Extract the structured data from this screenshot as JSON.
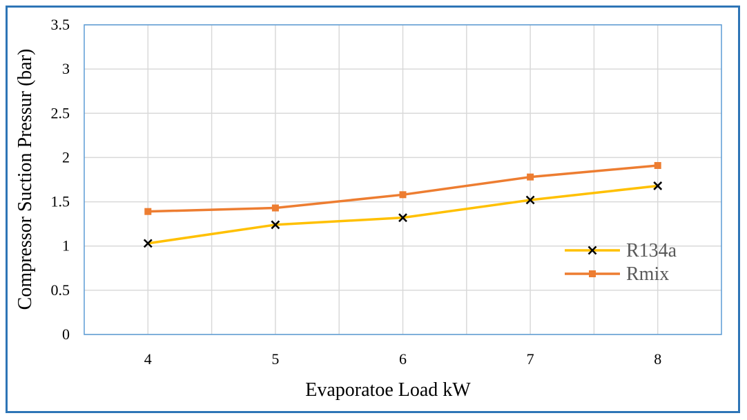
{
  "chart_data": {
    "type": "line",
    "title": "",
    "xlabel": "Evaporatoe Load kW",
    "ylabel": "Compressor Suction Pressur (bar)",
    "x": [
      4,
      5,
      6,
      7,
      8
    ],
    "x_ticks": [
      "4",
      "5",
      "6",
      "7",
      "8"
    ],
    "y_ticks": [
      "0",
      "0.5",
      "1",
      "1.5",
      "2",
      "2.5",
      "3",
      "3.5"
    ],
    "ylim": [
      0,
      3.5
    ],
    "grid": true,
    "legend_position": "right",
    "series": [
      {
        "name": "R134a",
        "values": [
          1.03,
          1.24,
          1.32,
          1.52,
          1.68
        ],
        "color": "#FFC000",
        "marker": "x",
        "marker_color": "#000000"
      },
      {
        "name": "Rmix",
        "values": [
          1.39,
          1.43,
          1.58,
          1.78,
          1.91
        ],
        "color": "#ED7D31",
        "marker": "square",
        "marker_color": "#ED7D31"
      }
    ],
    "frame_color": "#2E75B6",
    "plot_border_color": "#5B9BD5",
    "grid_color": "#D9D9D9"
  }
}
